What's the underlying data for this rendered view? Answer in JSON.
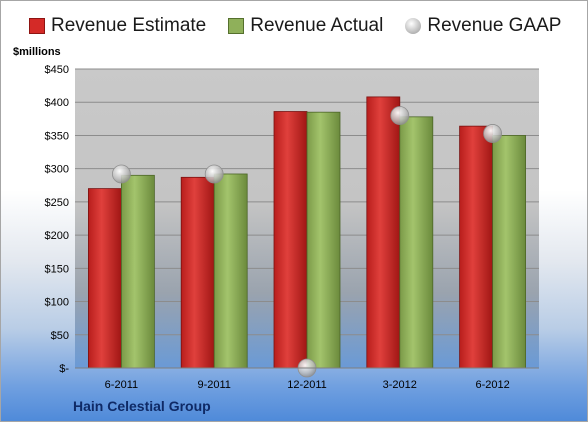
{
  "legend": {
    "estimate_label": "Revenue Estimate",
    "actual_label": "Revenue Actual",
    "gaap_label": "Revenue GAAP"
  },
  "units_label": "$millions",
  "company": "Hain Celestial Group",
  "colors": {
    "estimate": "#d42a27",
    "actual": "#8fb05a",
    "gaap": "#b5b5b5",
    "plot_area": "#c8c8c8"
  },
  "chart_data": {
    "type": "bar",
    "categories": [
      "6-2011",
      "9-2011",
      "12-2011",
      "3-2012",
      "6-2012"
    ],
    "series": [
      {
        "name": "Revenue Estimate",
        "type": "bar",
        "values": [
          270,
          287,
          386,
          408,
          364
        ]
      },
      {
        "name": "Revenue Actual",
        "type": "bar",
        "values": [
          290,
          292,
          385,
          378,
          350
        ]
      },
      {
        "name": "Revenue GAAP",
        "type": "scatter",
        "values": [
          292,
          292,
          0,
          380,
          353
        ]
      }
    ],
    "ylabel": "$millions",
    "ylim": [
      0,
      450
    ],
    "yticks": [
      0,
      50,
      100,
      150,
      200,
      250,
      300,
      350,
      400,
      450
    ],
    "ytick_labels": [
      "$-",
      "$50",
      "$100",
      "$150",
      "$200",
      "$250",
      "$300",
      "$350",
      "$400",
      "$450"
    ],
    "grid": true,
    "legend_position": "top"
  }
}
